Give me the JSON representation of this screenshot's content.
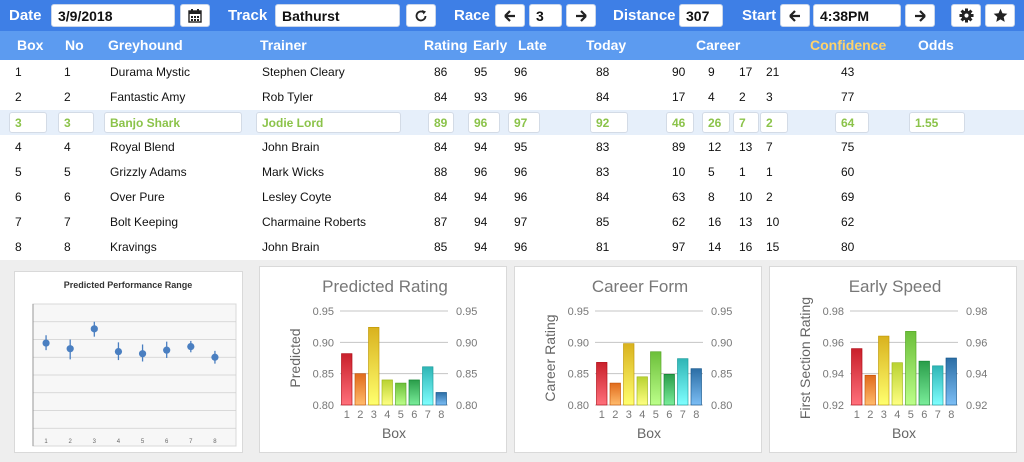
{
  "toolbar": {
    "date_label": "Date",
    "date_value": "3/9/2018",
    "calendar_icon": "calendar-icon",
    "track_label": "Track",
    "track_value": "Bathurst",
    "refresh_icon": "refresh-icon",
    "race_label": "Race",
    "race_prev_icon": "arrow-left-icon",
    "race_value": "3",
    "race_next_icon": "arrow-right-icon",
    "distance_label": "Distance",
    "distance_value": "307",
    "start_label": "Start",
    "start_prev_icon": "arrow-left-icon",
    "start_value": "4:38PM",
    "start_next_icon": "arrow-right-icon",
    "settings_icon": "gear-icon",
    "favorite_icon": "star-icon"
  },
  "columns": {
    "box": "Box",
    "no": "No",
    "greyhound": "Greyhound",
    "trainer": "Trainer",
    "rating": "Rating",
    "early": "Early",
    "late": "Late",
    "today": "Today",
    "career": "Career",
    "confidence": "Confidence",
    "odds": "Odds"
  },
  "rows": [
    {
      "box": "1",
      "no": "1",
      "greyhound": "Durama Mystic",
      "trainer": "Stephen Cleary",
      "rating": "86",
      "early": "95",
      "late": "96",
      "today": "88",
      "c1": "90",
      "c2": "9",
      "c3": "17",
      "c4": "21",
      "confidence": "43",
      "odds": ""
    },
    {
      "box": "2",
      "no": "2",
      "greyhound": "Fantastic Amy",
      "trainer": "Rob Tyler",
      "rating": "84",
      "early": "93",
      "late": "96",
      "today": "84",
      "c1": "17",
      "c2": "4",
      "c3": "2",
      "c4": "3",
      "confidence": "77",
      "odds": ""
    },
    {
      "box": "3",
      "no": "3",
      "greyhound": "Banjo Shark",
      "trainer": "Jodie Lord",
      "rating": "89",
      "early": "96",
      "late": "97",
      "today": "92",
      "c1": "46",
      "c2": "26",
      "c3": "7",
      "c4": "2",
      "confidence": "64",
      "odds": "1.55"
    },
    {
      "box": "4",
      "no": "4",
      "greyhound": "Royal Blend",
      "trainer": "John Brain",
      "rating": "84",
      "early": "94",
      "late": "95",
      "today": "83",
      "c1": "89",
      "c2": "12",
      "c3": "13",
      "c4": "7",
      "confidence": "75",
      "odds": ""
    },
    {
      "box": "5",
      "no": "5",
      "greyhound": "Grizzly Adams",
      "trainer": "Mark Wicks",
      "rating": "88",
      "early": "96",
      "late": "96",
      "today": "83",
      "c1": "10",
      "c2": "5",
      "c3": "1",
      "c4": "1",
      "confidence": "60",
      "odds": ""
    },
    {
      "box": "6",
      "no": "6",
      "greyhound": "Over Pure",
      "trainer": "Lesley Coyte",
      "rating": "84",
      "early": "94",
      "late": "96",
      "today": "84",
      "c1": "63",
      "c2": "8",
      "c3": "10",
      "c4": "2",
      "confidence": "69",
      "odds": ""
    },
    {
      "box": "7",
      "no": "7",
      "greyhound": "Bolt Keeping",
      "trainer": "Charmaine Roberts",
      "rating": "87",
      "early": "94",
      "late": "97",
      "today": "85",
      "c1": "62",
      "c2": "16",
      "c3": "13",
      "c4": "10",
      "confidence": "62",
      "odds": ""
    },
    {
      "box": "8",
      "no": "8",
      "greyhound": "Kravings",
      "trainer": "John Brain",
      "rating": "85",
      "early": "94",
      "late": "96",
      "today": "81",
      "c1": "97",
      "c2": "14",
      "c3": "16",
      "c4": "15",
      "confidence": "80",
      "odds": ""
    }
  ],
  "selected_row": 2,
  "colors": {
    "topbar": "#3e7fe6",
    "header": "#5c9bf0",
    "confidence_header": "#ffd36a",
    "selected_text": "#8bc34a",
    "selected_row": "#e6effa",
    "box_colors": [
      "#c9202b",
      "#e06b1c",
      "#d9b21e",
      "#b9d232",
      "#6cbf3a",
      "#2a9d4a",
      "#2fb5b5",
      "#2c6ea5"
    ]
  },
  "chart_data": [
    {
      "type": "scatter",
      "title": "Predicted Performance Range",
      "x": [
        1,
        2,
        3,
        4,
        5,
        6,
        7,
        8
      ],
      "y": [
        0.5,
        0.42,
        0.7,
        0.38,
        0.35,
        0.4,
        0.45,
        0.3
      ],
      "y_low": [
        0.4,
        0.27,
        0.59,
        0.26,
        0.24,
        0.29,
        0.37,
        0.21
      ],
      "y_high": [
        0.61,
        0.55,
        0.8,
        0.51,
        0.48,
        0.52,
        0.53,
        0.39
      ],
      "x_ticks": [
        "1",
        "2",
        "3",
        "4",
        "5",
        "6",
        "7",
        "8"
      ],
      "ylim": [
        -0.95,
        1.05
      ],
      "grid": true
    },
    {
      "type": "bar",
      "title": "Predicted Rating",
      "categories": [
        "1",
        "2",
        "3",
        "4",
        "5",
        "6",
        "7",
        "8"
      ],
      "values": [
        0.882,
        0.85,
        0.924,
        0.84,
        0.835,
        0.84,
        0.861,
        0.82
      ],
      "xlabel": "Box",
      "ylabel": "Predicted",
      "ylim": [
        0.8,
        0.95
      ],
      "yticks": [
        "0.80",
        "0.85",
        "0.90",
        "0.95"
      ],
      "y2ticks": [
        "0.80",
        "0.85",
        "0.90",
        "0.95"
      ],
      "grid": true
    },
    {
      "type": "bar",
      "title": "Career Form",
      "categories": [
        "1",
        "2",
        "3",
        "4",
        "5",
        "6",
        "7",
        "8"
      ],
      "values": [
        0.868,
        0.835,
        0.898,
        0.845,
        0.885,
        0.849,
        0.874,
        0.858
      ],
      "xlabel": "Box",
      "ylabel": "Career Rating",
      "ylim": [
        0.8,
        0.95
      ],
      "yticks": [
        "0.80",
        "0.85",
        "0.90",
        "0.95"
      ],
      "y2ticks": [
        "0.80",
        "0.85",
        "0.90",
        "0.95"
      ],
      "grid": true
    },
    {
      "type": "bar",
      "title": "Early Speed",
      "categories": [
        "1",
        "2",
        "3",
        "4",
        "5",
        "6",
        "7",
        "8"
      ],
      "values": [
        0.956,
        0.939,
        0.964,
        0.947,
        0.967,
        0.948,
        0.945,
        0.95
      ],
      "xlabel": "Box",
      "ylabel": "First Section Rating",
      "ylim": [
        0.92,
        0.98
      ],
      "yticks": [
        "0.92",
        "0.94",
        "0.96",
        "0.98"
      ],
      "y2ticks": [
        "0.92",
        "0.94",
        "0.96",
        "0.98"
      ],
      "grid": true
    }
  ]
}
